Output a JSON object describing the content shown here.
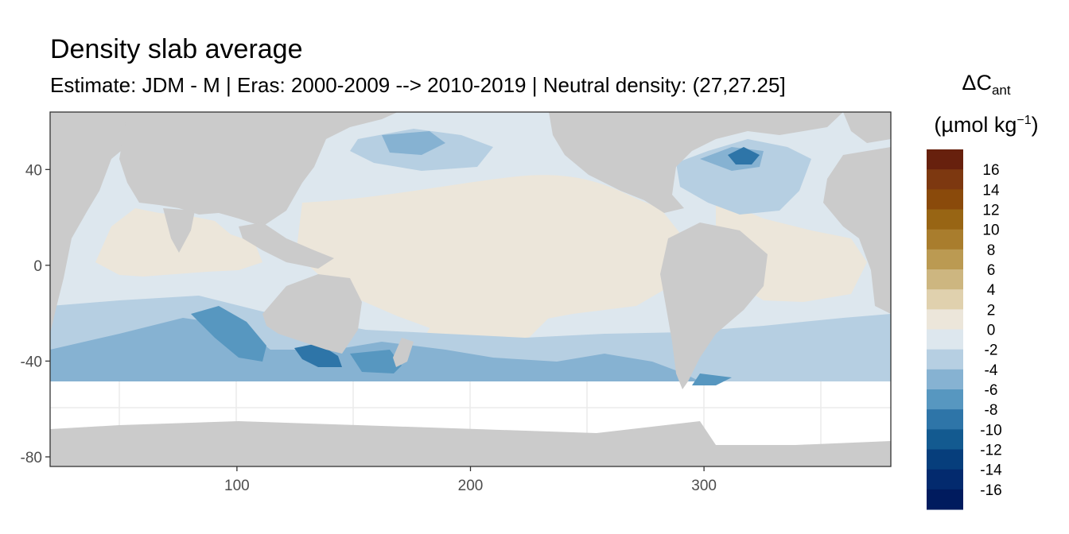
{
  "title": "Density slab average",
  "subtitle": "Estimate: JDM - M | Eras: 2000-2009 --> 2010-2019 | Neutral density: (27,27.25]",
  "legend": {
    "title_main": "ΔC",
    "title_sub": "ant",
    "unit_main": "(µmol kg",
    "unit_sup": "−1",
    "unit_close": ")",
    "labels": [
      "16",
      "14",
      "12",
      "10",
      "8",
      "6",
      "4",
      "2",
      "0",
      "-2",
      "-4",
      "-6",
      "-8",
      "-10",
      "-12",
      "-14",
      "-16"
    ],
    "colors": [
      "#67200d",
      "#7d3810",
      "#8a4a0b",
      "#986514",
      "#a97d2d",
      "#bb9a52",
      "#cdb680",
      "#e0d1ae",
      "#ece6da",
      "#dde7ee",
      "#b6cfe2",
      "#86b2d2",
      "#5797c0",
      "#2e75a8",
      "#135a90",
      "#063e7c",
      "#032a6e",
      "#001b5e"
    ]
  },
  "axes": {
    "x_ticks": [
      100,
      200,
      300
    ],
    "y_ticks": [
      40,
      0,
      -40,
      -80
    ],
    "x_range": [
      20,
      380
    ],
    "y_range": [
      -84,
      64
    ]
  },
  "colors": {
    "land": "#cbcbcb",
    "no_data": "#ffffff",
    "grid": "#ebebeb",
    "frame": "#333333"
  }
}
